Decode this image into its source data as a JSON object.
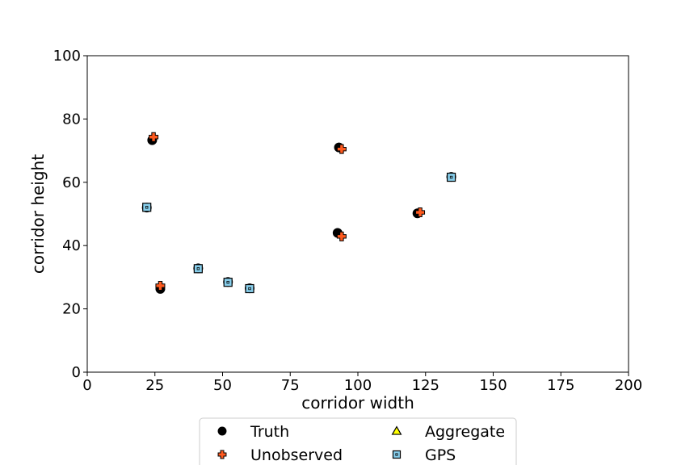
{
  "chart_data": {
    "type": "scatter",
    "title": "",
    "xlabel": "corridor width",
    "ylabel": "corridor height",
    "xlim": [
      0,
      200
    ],
    "ylim": [
      0,
      100
    ],
    "xticks": [
      "0",
      "25",
      "50",
      "75",
      "100",
      "125",
      "150",
      "175",
      "200"
    ],
    "yticks": [
      "0",
      "20",
      "40",
      "60",
      "80",
      "100"
    ],
    "grid": false,
    "legend_position": "bottom-center, outside, 2 columns",
    "series": [
      {
        "name": "Truth",
        "marker": "circle",
        "color": "#000000",
        "points": [
          {
            "x": 24,
            "y": 73.3
          },
          {
            "x": 93,
            "y": 71.0
          },
          {
            "x": 122,
            "y": 50.2
          },
          {
            "x": 92.5,
            "y": 44.0
          },
          {
            "x": 27,
            "y": 26.3
          },
          {
            "x": 22,
            "y": 52.0
          },
          {
            "x": 41,
            "y": 32.8
          },
          {
            "x": 52,
            "y": 28.5
          },
          {
            "x": 60,
            "y": 26.5
          },
          {
            "x": 134.5,
            "y": 61.7
          }
        ]
      },
      {
        "name": "Unobserved",
        "marker": "plus",
        "color": "#ff5a1f",
        "points": [
          {
            "x": 24.5,
            "y": 74.3
          },
          {
            "x": 94,
            "y": 70.5
          },
          {
            "x": 123,
            "y": 50.5
          },
          {
            "x": 94,
            "y": 42.9
          },
          {
            "x": 27,
            "y": 27.3
          }
        ]
      },
      {
        "name": "Aggregate",
        "marker": "triangle",
        "color": "#ffff00",
        "points": []
      },
      {
        "name": "GPS",
        "marker": "square",
        "color": "#87ceeb",
        "points": [
          {
            "x": 22,
            "y": 52.1
          },
          {
            "x": 41,
            "y": 32.7
          },
          {
            "x": 52,
            "y": 28.4
          },
          {
            "x": 60,
            "y": 26.4
          },
          {
            "x": 134.5,
            "y": 61.6
          }
        ]
      }
    ]
  }
}
